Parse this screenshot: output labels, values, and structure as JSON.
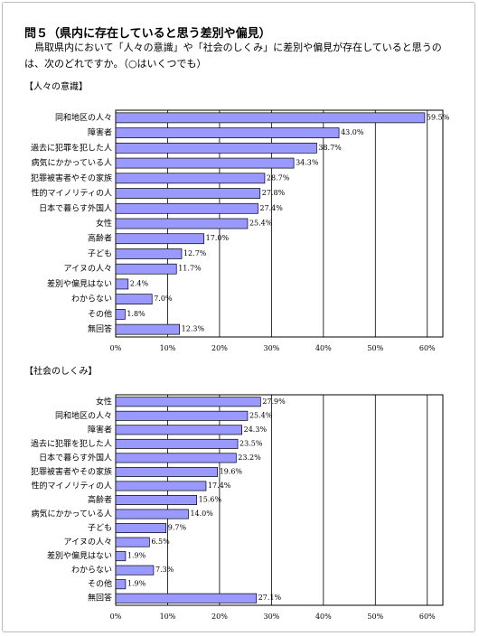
{
  "title": "問５（県内に存在していると思う差別や偏見）",
  "question": "鳥取県内において「人々の意識」や「社会のしくみ」に差別や偏見が存在していると思うのは、次のどれですか。（○はいくつでも）",
  "chart_data": [
    {
      "type": "bar",
      "orientation": "horizontal",
      "title": "【人々の意識】",
      "categories": [
        "同和地区の人々",
        "障害者",
        "過去に犯罪を犯した人",
        "病気にかかっている人",
        "犯罪被害者やその家族",
        "性的マイノリティの人",
        "日本で暮らす外国人",
        "女性",
        "高齢者",
        "子ども",
        "アイヌの人々",
        "差別や偏見はない",
        "わからない",
        "その他",
        "無回答"
      ],
      "values": [
        59.5,
        43.0,
        38.7,
        34.3,
        28.7,
        27.8,
        27.4,
        25.4,
        17.0,
        12.7,
        11.7,
        2.4,
        7.0,
        1.8,
        12.3
      ],
      "value_labels": [
        "59.5%",
        "43.0%",
        "38.7%",
        "34.3%",
        "28.7%",
        "27.8%",
        "27.4%",
        "25.4%",
        "17.0%",
        "12.7%",
        "11.7%",
        "2.4%",
        "7.0%",
        "1.8%",
        "12.3%"
      ],
      "color": "#9999ff",
      "xlim": [
        0,
        63
      ],
      "xticks": [
        {
          "value": 0,
          "label": "0%"
        },
        {
          "value": 10,
          "label": "10%"
        },
        {
          "value": 20,
          "label": "20%"
        },
        {
          "value": 30,
          "label": "30%"
        },
        {
          "value": 40,
          "label": "40%"
        },
        {
          "value": 50,
          "label": "50%"
        },
        {
          "value": 60,
          "label": "60%"
        }
      ],
      "grid": true
    },
    {
      "type": "bar",
      "orientation": "horizontal",
      "title": "【社会のしくみ】",
      "categories": [
        "女性",
        "同和地区の人々",
        "障害者",
        "過去に犯罪を犯した人",
        "日本で暮らす外国人",
        "犯罪被害者やその家族",
        "性的マイノリティの人",
        "高齢者",
        "病気にかかっている人",
        "子ども",
        "アイヌの人々",
        "差別や偏見はない",
        "わからない",
        "その他",
        "無回答"
      ],
      "values": [
        27.9,
        25.4,
        24.3,
        23.5,
        23.2,
        19.6,
        17.4,
        15.6,
        14.0,
        9.7,
        6.5,
        1.9,
        7.3,
        1.9,
        27.1
      ],
      "value_labels": [
        "27.9%",
        "25.4%",
        "24.3%",
        "23.5%",
        "23.2%",
        "19.6%",
        "17.4%",
        "15.6%",
        "14.0%",
        "9.7%",
        "6.5%",
        "1.9%",
        "7.3%",
        "1.9%",
        "27.1%"
      ],
      "color": "#9999ff",
      "xlim": [
        0,
        63
      ],
      "xticks": [
        {
          "value": 0,
          "label": "0%"
        },
        {
          "value": 10,
          "label": "10%"
        },
        {
          "value": 20,
          "label": "20%"
        },
        {
          "value": 30,
          "label": "30%"
        },
        {
          "value": 40,
          "label": "40%"
        },
        {
          "value": 50,
          "label": "50%"
        },
        {
          "value": 60,
          "label": "60%"
        }
      ],
      "grid": true
    }
  ]
}
